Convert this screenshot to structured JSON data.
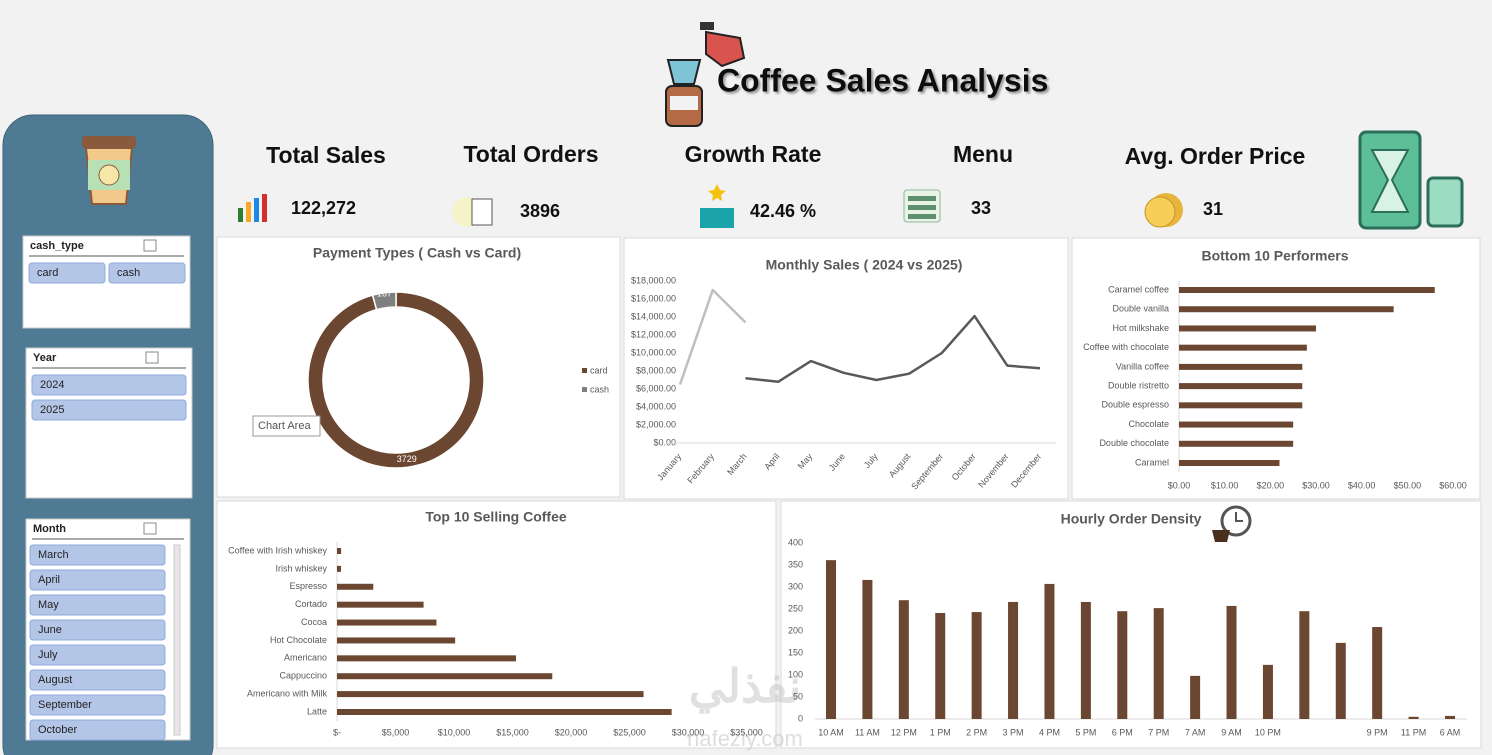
{
  "header": {
    "title": "Coffee Sales Analysis"
  },
  "kpis": [
    {
      "label": "Total Sales",
      "value": "122,272"
    },
    {
      "label": "Total Orders",
      "value": "3896"
    },
    {
      "label": "Growth Rate",
      "value": "42.46 %"
    },
    {
      "label": "Menu",
      "value": "33"
    },
    {
      "label": "Avg. Order Price",
      "value": "31"
    }
  ],
  "slicers": [
    {
      "title": "cash_type",
      "items": [
        "card",
        "cash"
      ]
    },
    {
      "title": "Year",
      "items": [
        "2024",
        "2025"
      ]
    },
    {
      "title": "Month",
      "items": [
        "March",
        "April",
        "May",
        "June",
        "July",
        "August",
        "September",
        "October"
      ]
    }
  ],
  "tooltip": "Chart Area",
  "watermark": [
    "نفذلي",
    "nafezly.com"
  ],
  "chart_data": [
    {
      "type": "pie",
      "title": "Payment Types ( Cash vs Card)",
      "categories": [
        "card",
        "cash"
      ],
      "values": [
        3729,
        167
      ],
      "colors": [
        "#6b4630",
        "#7f7f7f"
      ],
      "donut": true,
      "legend": "right"
    },
    {
      "type": "line",
      "title": "Monthly Sales ( 2024 vs 2025)",
      "categories": [
        "January",
        "February",
        "March",
        "April",
        "May",
        "June",
        "July",
        "August",
        "September",
        "October",
        "November",
        "December"
      ],
      "series": [
        {
          "color": "#bfbfbf",
          "values": [
            6500,
            17000,
            13400,
            null,
            null,
            null,
            null,
            null,
            null,
            null,
            null,
            null
          ]
        },
        {
          "color": "#595959",
          "values": [
            null,
            null,
            7200,
            6800,
            9100,
            7800,
            7000,
            7700,
            10000,
            14100,
            8600,
            8300
          ]
        }
      ],
      "ylim": [
        0,
        18000
      ],
      "yticks": [
        {
          "value": 0,
          "label": "$0.00"
        },
        {
          "value": 2000,
          "label": "$2,000.00"
        },
        {
          "value": 4000,
          "label": "$4,000.00"
        },
        {
          "value": 6000,
          "label": "$6,000.00"
        },
        {
          "value": 8000,
          "label": "$8,000.00"
        },
        {
          "value": 10000,
          "label": "$10,000.00"
        },
        {
          "value": 12000,
          "label": "$12,000.00"
        },
        {
          "value": 14000,
          "label": "$14,000.00"
        },
        {
          "value": 16000,
          "label": "$16,000.00"
        },
        {
          "value": 18000,
          "label": "$18,000.00"
        }
      ],
      "grid": false
    },
    {
      "type": "barh",
      "title": "Bottom 10 Performers",
      "categories": [
        "Caramel coffee",
        "Double vanilla",
        "Hot milkshake",
        "Coffee with chocolate",
        "Vanilla coffee",
        "Double ristretto",
        "Double espresso",
        "Chocolate",
        "Double chocolate",
        "Caramel"
      ],
      "values": [
        56,
        47,
        30,
        28,
        27,
        27,
        27,
        25,
        25,
        22
      ],
      "color": "#6b4630",
      "xlim": [
        0,
        60
      ],
      "xticks": [
        {
          "value": 0,
          "label": "$0.00"
        },
        {
          "value": 10,
          "label": "$10.00"
        },
        {
          "value": 20,
          "label": "$20.00"
        },
        {
          "value": 30,
          "label": "$30.00"
        },
        {
          "value": 40,
          "label": "$40.00"
        },
        {
          "value": 50,
          "label": "$50.00"
        },
        {
          "value": 60,
          "label": "$60.00"
        }
      ]
    },
    {
      "type": "barh",
      "title": "Top 10 Selling Coffee",
      "categories": [
        "Coffee with Irish whiskey",
        "Irish whiskey",
        "Espresso",
        "Cortado",
        "Cocoa",
        "Hot Chocolate",
        "Americano",
        "Cappuccino",
        "Americano with Milk",
        "Latte"
      ],
      "values": [
        350,
        340,
        3100,
        7400,
        8500,
        10100,
        15300,
        18400,
        26200,
        28600
      ],
      "color": "#6b4630",
      "xlim": [
        0,
        35000
      ],
      "xticks": [
        {
          "value": 0,
          "label": "$-"
        },
        {
          "value": 5000,
          "label": "$5,000"
        },
        {
          "value": 10000,
          "label": "$10,000"
        },
        {
          "value": 15000,
          "label": "$15,000"
        },
        {
          "value": 20000,
          "label": "$20,000"
        },
        {
          "value": 25000,
          "label": "$25,000"
        },
        {
          "value": 30000,
          "label": "$30,000"
        },
        {
          "value": 35000,
          "label": "$35,000"
        }
      ]
    },
    {
      "type": "bar",
      "title": "Hourly Order Density",
      "categories": [
        "10 AM",
        "11 AM",
        "12 PM",
        "1 PM",
        "2 PM",
        "3 PM",
        "4 PM",
        "5 PM",
        "6 PM",
        "7 PM",
        "7 AM",
        "9 AM",
        "10 PM",
        null,
        null,
        "9 PM",
        "11 PM",
        "6 AM"
      ],
      "values": [
        361,
        316,
        270,
        241,
        243,
        266,
        307,
        266,
        245,
        252,
        98,
        257,
        123,
        245,
        173,
        209,
        5,
        7
      ],
      "color": "#6b4630",
      "ylim": [
        0,
        400
      ],
      "yticks": [
        0,
        50,
        100,
        150,
        200,
        250,
        300,
        350,
        400
      ]
    }
  ]
}
